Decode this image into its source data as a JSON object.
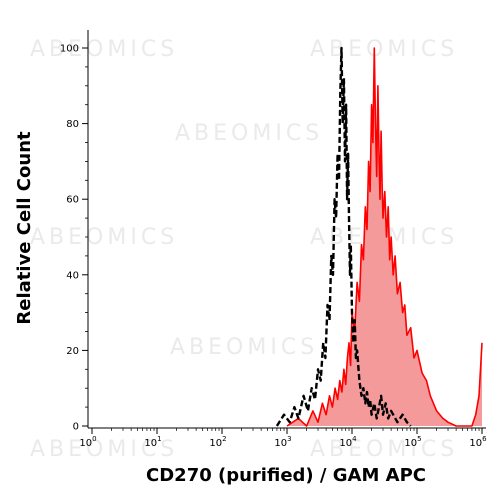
{
  "watermark": "ABEOMICS",
  "chart_data": {
    "type": "area",
    "title": "",
    "xlabel": "CD270 (purified) / GAM APC",
    "ylabel": "Relative Cell Count",
    "xscale": "log",
    "xlim": [
      1,
      1000000
    ],
    "ylim": [
      0,
      100
    ],
    "grid": false,
    "x_ticks": [
      {
        "base": "10",
        "exp": "0"
      },
      {
        "base": "10",
        "exp": "1"
      },
      {
        "base": "10",
        "exp": "2"
      },
      {
        "base": "10",
        "exp": "3"
      },
      {
        "base": "10",
        "exp": "4"
      },
      {
        "base": "10",
        "exp": "5"
      },
      {
        "base": "10",
        "exp": "6"
      }
    ],
    "y_ticks": [
      "0",
      "20",
      "40",
      "60",
      "80",
      "100"
    ],
    "series": [
      {
        "style": "dashed",
        "color": "#000000",
        "fill": "none",
        "x": [
          700,
          900,
          1100,
          1300,
          1500,
          1800,
          2100,
          2400,
          2700,
          3000,
          3300,
          3600,
          3900,
          4200,
          4500,
          4800,
          5100,
          5400,
          5700,
          6000,
          6300,
          6600,
          6900,
          7200,
          7500,
          7800,
          8100,
          8400,
          8700,
          9000,
          9300,
          9600,
          10000,
          10500,
          11000,
          11500,
          12000,
          13000,
          14000,
          15000,
          16000,
          17000,
          18000,
          19000,
          20000,
          22000,
          24000,
          26000,
          28000,
          30000,
          33000,
          36000,
          40000,
          50000,
          60000,
          70000,
          80000
        ],
        "y": [
          0,
          3,
          1,
          5,
          2,
          8,
          4,
          10,
          7,
          15,
          12,
          22,
          18,
          32,
          28,
          45,
          40,
          60,
          55,
          72,
          65,
          88,
          100,
          80,
          92,
          70,
          85,
          60,
          72,
          55,
          40,
          48,
          30,
          22,
          28,
          18,
          20,
          12,
          8,
          10,
          6,
          9,
          5,
          7,
          3,
          6,
          2,
          5,
          8,
          3,
          6,
          2,
          4,
          1,
          3,
          1,
          0
        ]
      },
      {
        "style": "solid",
        "color": "#ff0000",
        "fill": "#f59a9a",
        "x": [
          1000,
          1500,
          2000,
          2500,
          3000,
          3500,
          4000,
          4500,
          5000,
          5500,
          6000,
          6500,
          7000,
          7500,
          8000,
          8500,
          9000,
          9500,
          10000,
          11000,
          12000,
          13000,
          14000,
          15000,
          16000,
          17000,
          18000,
          19000,
          20000,
          21000,
          22000,
          23000,
          24000,
          25000,
          26000,
          27000,
          28000,
          29000,
          30000,
          32000,
          34000,
          36000,
          38000,
          40000,
          43000,
          46000,
          50000,
          55000,
          60000,
          65000,
          70000,
          80000,
          90000,
          100000,
          120000,
          140000,
          160000,
          200000,
          250000,
          300000,
          400000,
          500000,
          600000,
          700000,
          800000,
          900000,
          1000000
        ],
        "y": [
          0,
          2,
          0,
          4,
          1,
          6,
          3,
          8,
          5,
          10,
          7,
          12,
          9,
          15,
          11,
          18,
          22,
          16,
          30,
          25,
          38,
          33,
          48,
          44,
          58,
          52,
          70,
          62,
          85,
          75,
          100,
          80,
          66,
          90,
          72,
          60,
          78,
          64,
          55,
          62,
          50,
          58,
          44,
          50,
          40,
          45,
          35,
          38,
          30,
          32,
          24,
          26,
          18,
          20,
          14,
          12,
          8,
          4,
          2,
          1,
          0,
          0,
          0,
          0,
          3,
          8,
          22
        ]
      }
    ]
  }
}
